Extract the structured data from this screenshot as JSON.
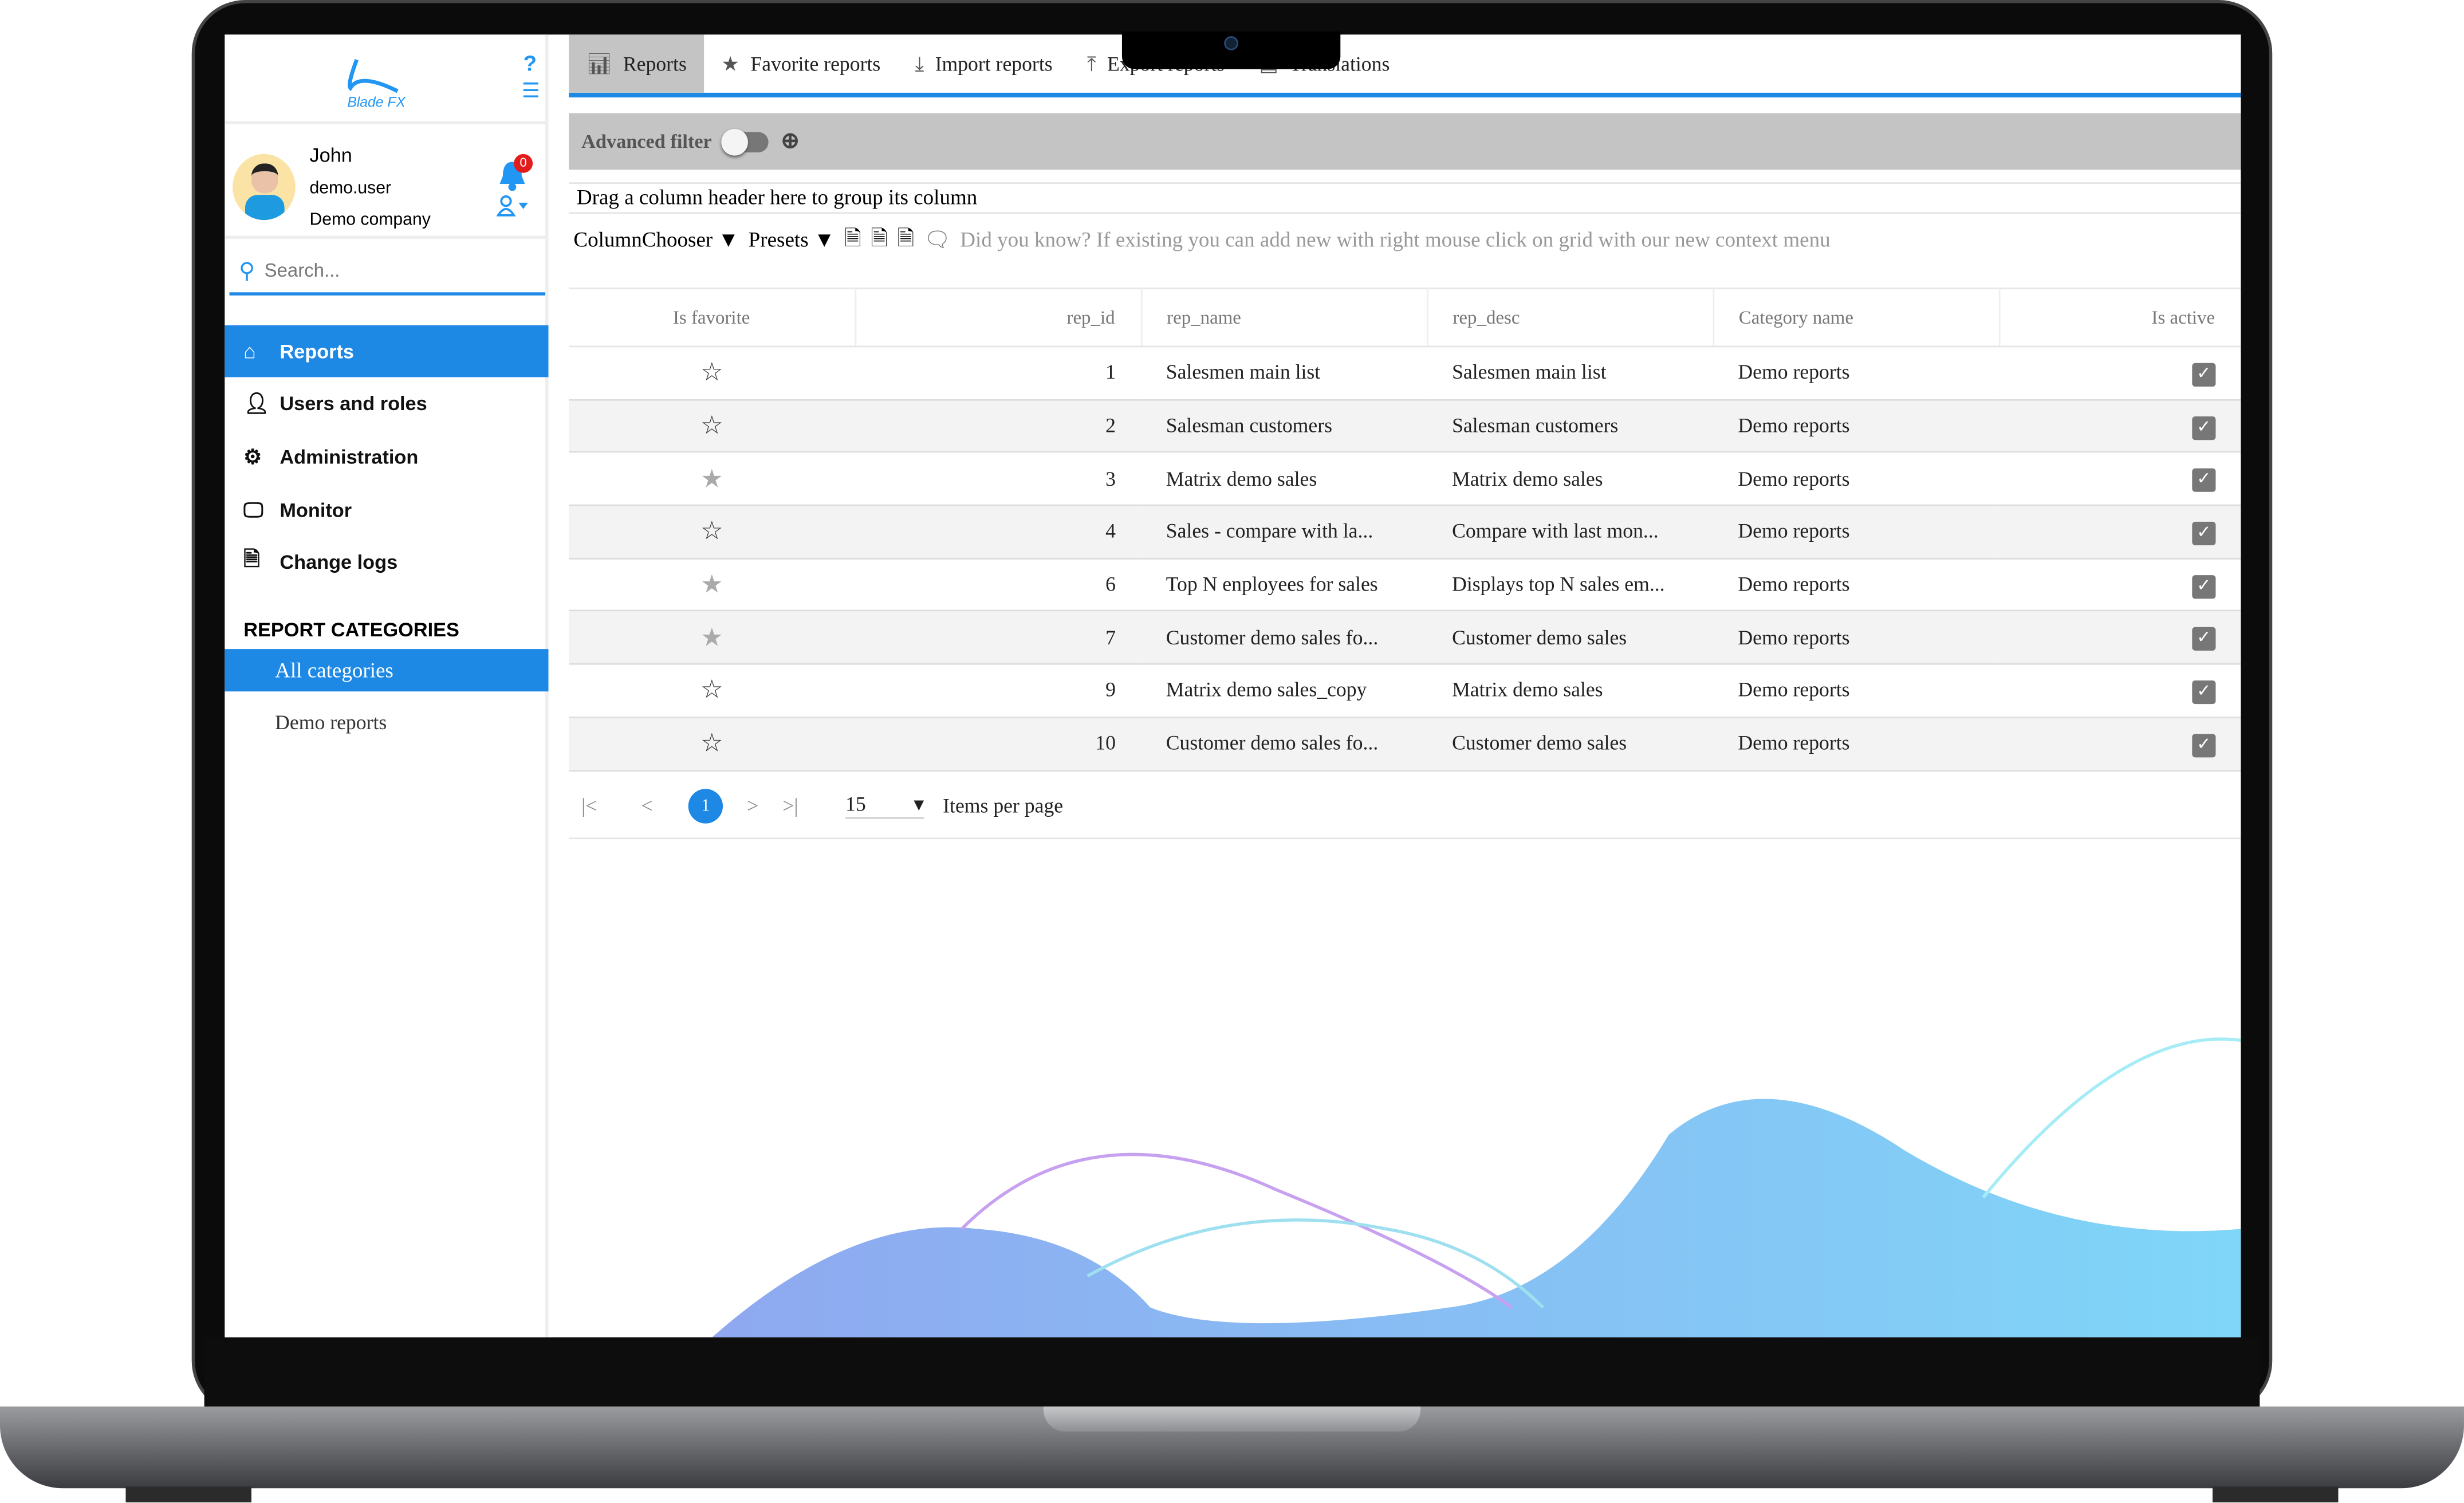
{
  "brand": {
    "logo_text": "BladeFX",
    "accent": "#1e88e5"
  },
  "user": {
    "name": "John",
    "username": "demo.user",
    "company": "Demo company",
    "notifications": "0"
  },
  "search": {
    "placeholder": "Search..."
  },
  "sidebar": {
    "items": [
      {
        "label": "Reports",
        "icon": "home-icon",
        "active": true
      },
      {
        "label": "Users and roles",
        "icon": "user-icon"
      },
      {
        "label": "Administration",
        "icon": "gear-icon"
      },
      {
        "label": "Monitor",
        "icon": "monitor-icon"
      },
      {
        "label": "Change logs",
        "icon": "code-file-icon"
      }
    ],
    "categories_title": "REPORT CATEGORIES",
    "categories": [
      "All categories",
      "Demo reports"
    ]
  },
  "tabs": [
    "Reports",
    "Favorite reports",
    "Import reports",
    "Export reports",
    "Translations"
  ],
  "filter": {
    "label": "Advanced filter",
    "enabled": false
  },
  "grid": {
    "group_hint": "Drag a column header here to group its column",
    "column_chooser": "ColumnChooser",
    "presets": "Presets",
    "tip": "Did you know? If existing you can add new with right mouse click on grid with our new context menu",
    "columns": [
      "Is favorite",
      "rep_id",
      "rep_name",
      "rep_desc",
      "Category name",
      "Is active"
    ],
    "rows": [
      {
        "fav": false,
        "id": "1",
        "name": "Salesmen main list",
        "desc": "Salesmen main list",
        "cat": "Demo reports",
        "active": true
      },
      {
        "fav": false,
        "id": "2",
        "name": "Salesman customers",
        "desc": "Salesman customers",
        "cat": "Demo reports",
        "active": true
      },
      {
        "fav": true,
        "id": "3",
        "name": "Matrix demo sales",
        "desc": "Matrix demo sales",
        "cat": "Demo reports",
        "active": true
      },
      {
        "fav": false,
        "id": "4",
        "name": "Sales - compare with la...",
        "desc": "Compare with last mon...",
        "cat": "Demo reports",
        "active": true
      },
      {
        "fav": true,
        "id": "6",
        "name": "Top N enployees for sales",
        "desc": "Displays top N sales em...",
        "cat": "Demo reports",
        "active": true
      },
      {
        "fav": true,
        "id": "7",
        "name": "Customer demo sales fo...",
        "desc": "Customer demo sales",
        "cat": "Demo reports",
        "active": true
      },
      {
        "fav": false,
        "id": "9",
        "name": "Matrix demo sales_copy",
        "desc": "Matrix demo sales",
        "cat": "Demo reports",
        "active": true
      },
      {
        "fav": false,
        "id": "10",
        "name": "Customer demo sales fo...",
        "desc": "Customer demo sales",
        "cat": "Demo reports",
        "active": true
      }
    ]
  },
  "pager": {
    "current_page": "1",
    "page_size": "15",
    "items_per_page_label": "Items per page"
  }
}
